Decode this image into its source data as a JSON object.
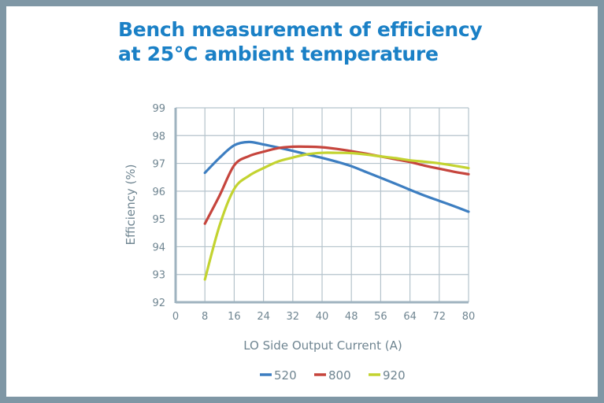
{
  "chart_data": {
    "type": "line",
    "title": [
      "Bench measurement of efficiency",
      "at 25°C ambient temperature"
    ],
    "xlabel": "LO Side Output Current (A)",
    "ylabel": "Efficiency (%)",
    "xlim": [
      0,
      80
    ],
    "ylim": [
      92,
      99
    ],
    "xticks": [
      0,
      8,
      16,
      24,
      32,
      40,
      48,
      56,
      64,
      72,
      80
    ],
    "yticks": [
      92,
      93,
      94,
      95,
      96,
      97,
      98,
      99
    ],
    "grid": true,
    "legend_position": "bottom",
    "x": [
      8,
      12,
      16,
      20,
      24,
      28,
      32,
      36,
      40,
      44,
      48,
      52,
      56,
      60,
      64,
      68,
      72,
      76,
      80
    ],
    "series": [
      {
        "name": "520",
        "color": "#3d7ec1",
        "values": [
          96.66,
          97.2,
          97.65,
          97.77,
          97.68,
          97.57,
          97.45,
          97.32,
          97.2,
          97.06,
          96.9,
          96.69,
          96.48,
          96.27,
          96.05,
          95.84,
          95.65,
          95.46,
          95.26
        ]
      },
      {
        "name": "800",
        "color": "#c6453d",
        "values": [
          94.83,
          95.84,
          96.93,
          97.26,
          97.42,
          97.55,
          97.6,
          97.6,
          97.58,
          97.52,
          97.44,
          97.35,
          97.25,
          97.15,
          97.05,
          96.92,
          96.81,
          96.7,
          96.61
        ]
      },
      {
        "name": "920",
        "color": "#c3d330",
        "values": [
          92.82,
          94.76,
          96.08,
          96.55,
          96.83,
          97.07,
          97.21,
          97.33,
          97.38,
          97.38,
          97.37,
          97.32,
          97.25,
          97.19,
          97.11,
          97.06,
          97.0,
          96.92,
          96.83
        ]
      }
    ]
  }
}
